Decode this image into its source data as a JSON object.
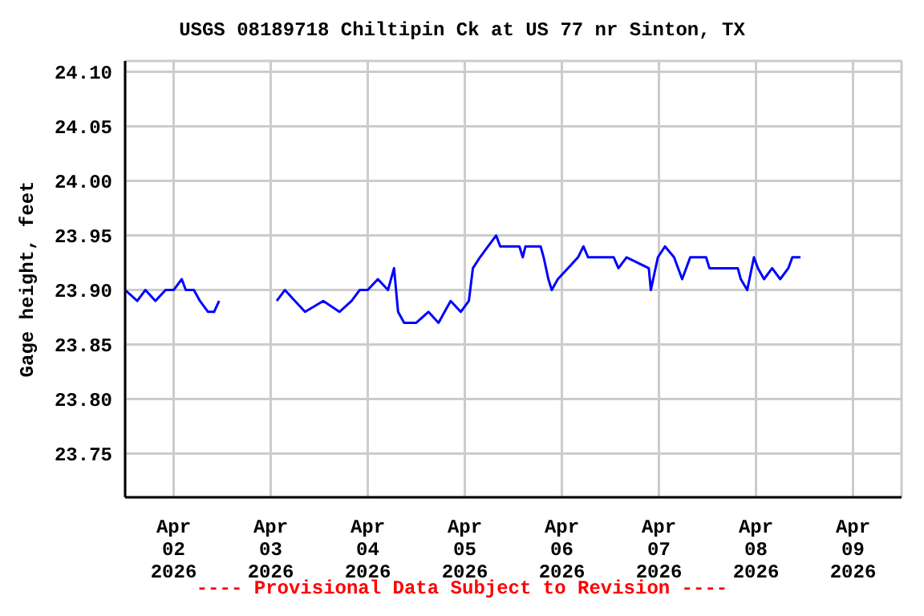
{
  "chart_data": {
    "type": "line",
    "title": "USGS 08189718 Chiltipin Ck at US 77 nr Sinton, TX",
    "ylabel": "Gage height, feet",
    "annotations": [
      "---- Provisional Data Subject to Revision ----"
    ],
    "x": [
      "2026-04-01T12:00",
      "2026-04-01T15:00",
      "2026-04-01T17:00",
      "2026-04-01T19:30",
      "2026-04-01T22:00",
      "2026-04-02T00:00",
      "2026-04-02T02:00",
      "2026-04-02T03:00",
      "2026-04-02T05:00",
      "2026-04-02T06:30",
      "2026-04-02T08:30",
      "2026-04-02T10:00",
      "2026-04-02T11:15",
      "2026-04-02T18:00",
      "2026-04-03T01:30",
      "2026-04-03T03:30",
      "2026-04-03T06:00",
      "2026-04-03T08:30",
      "2026-04-03T13:00",
      "2026-04-03T17:00",
      "2026-04-03T20:00",
      "2026-04-03T22:00",
      "2026-04-04T00:00",
      "2026-04-04T02:30",
      "2026-04-04T05:00",
      "2026-04-04T06:30",
      "2026-04-04T07:30",
      "2026-04-04T09:00",
      "2026-04-04T12:00",
      "2026-04-04T15:00",
      "2026-04-04T17:30",
      "2026-04-04T19:00",
      "2026-04-04T20:30",
      "2026-04-04T23:00",
      "2026-04-05T01:00",
      "2026-04-05T02:00",
      "2026-04-05T03:45",
      "2026-04-05T05:45",
      "2026-04-05T07:45",
      "2026-04-05T08:45",
      "2026-04-05T13:30",
      "2026-04-05T14:20",
      "2026-04-05T15:00",
      "2026-04-05T18:45",
      "2026-04-05T19:30",
      "2026-04-05T20:40",
      "2026-04-05T21:30",
      "2026-04-05T23:00",
      "2026-04-06T01:30",
      "2026-04-06T04:00",
      "2026-04-06T05:20",
      "2026-04-06T06:30",
      "2026-04-06T12:50",
      "2026-04-06T14:00",
      "2026-04-06T16:00",
      "2026-04-06T21:30",
      "2026-04-06T22:00",
      "2026-04-06T23:45",
      "2026-04-07T01:30",
      "2026-04-07T03:45",
      "2026-04-07T05:45",
      "2026-04-07T07:45",
      "2026-04-07T11:40",
      "2026-04-07T12:30",
      "2026-04-07T19:30",
      "2026-04-07T20:15",
      "2026-04-07T21:50",
      "2026-04-07T23:30",
      "2026-04-08T00:30",
      "2026-04-08T02:00",
      "2026-04-08T04:00",
      "2026-04-08T06:00",
      "2026-04-08T08:00",
      "2026-04-08T09:00",
      "2026-04-08T11:00"
    ],
    "series": [
      {
        "color": "#0000ff",
        "values": [
          23.9,
          23.89,
          23.9,
          23.89,
          23.9,
          23.9,
          23.91,
          23.9,
          23.9,
          23.89,
          23.88,
          23.88,
          23.89,
          null,
          23.89,
          23.9,
          23.89,
          23.88,
          23.89,
          23.88,
          23.89,
          23.9,
          23.9,
          23.91,
          23.9,
          23.92,
          23.88,
          23.87,
          23.87,
          23.88,
          23.87,
          23.88,
          23.89,
          23.88,
          23.89,
          23.92,
          23.93,
          23.94,
          23.95,
          23.94,
          23.94,
          23.93,
          23.94,
          23.94,
          23.93,
          23.91,
          23.9,
          23.91,
          23.92,
          23.93,
          23.94,
          23.93,
          23.93,
          23.92,
          23.93,
          23.92,
          23.9,
          23.93,
          23.94,
          23.93,
          23.91,
          23.93,
          23.93,
          23.92,
          23.92,
          23.91,
          23.9,
          23.93,
          23.92,
          23.91,
          23.92,
          23.91,
          23.92,
          23.93,
          23.93
        ]
      }
    ],
    "xlim": [
      "2026-04-01T12:00",
      "2026-04-09T12:00"
    ],
    "xticks": [
      {
        "value": "2026-04-02",
        "label": "Apr 02 2026"
      },
      {
        "value": "2026-04-03",
        "label": "Apr 03 2026"
      },
      {
        "value": "2026-04-04",
        "label": "Apr 04 2026"
      },
      {
        "value": "2026-04-05",
        "label": "Apr 05 2026"
      },
      {
        "value": "2026-04-06",
        "label": "Apr 06 2026"
      },
      {
        "value": "2026-04-07",
        "label": "Apr 07 2026"
      },
      {
        "value": "2026-04-08",
        "label": "Apr 08 2026"
      },
      {
        "value": "2026-04-09",
        "label": "Apr 09 2026"
      }
    ],
    "ylim": [
      23.71,
      24.11
    ],
    "yticks": [
      {
        "value": 23.75,
        "label": "23.75"
      },
      {
        "value": 23.8,
        "label": "23.80"
      },
      {
        "value": 23.85,
        "label": "23.85"
      },
      {
        "value": 23.9,
        "label": "23.90"
      },
      {
        "value": 23.95,
        "label": "23.95"
      },
      {
        "value": 24.0,
        "label": "24.00"
      },
      {
        "value": 24.05,
        "label": "24.05"
      },
      {
        "value": 24.1,
        "label": "24.10"
      }
    ],
    "grid": true,
    "legend": false,
    "marker": "none",
    "line_style": "solid"
  }
}
